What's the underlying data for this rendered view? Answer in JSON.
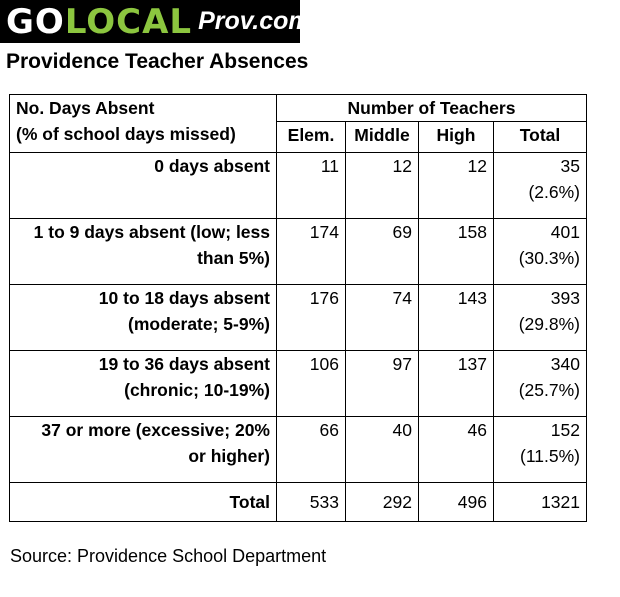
{
  "logo": {
    "part1": "GO",
    "part2": "LOCAL",
    "part3": "Prov.com"
  },
  "title": "Providence Teacher Absences",
  "table": {
    "label_header_line1": "No. Days Absent",
    "label_header_line2": "(% of school days missed)",
    "group_header": "Number of Teachers",
    "columns": [
      "Elem.",
      "Middle",
      "High",
      "Total"
    ],
    "rows": [
      {
        "label1": "0 days absent",
        "label2": "",
        "elem": "11",
        "middle": "12",
        "high": "12",
        "total": "35",
        "pct": "(2.6%)"
      },
      {
        "label1": "1 to 9 days absent (low; less",
        "label2": "than 5%)",
        "elem": "174",
        "middle": "69",
        "high": "158",
        "total": "401",
        "pct": "(30.3%)"
      },
      {
        "label1": "10 to 18 days absent",
        "label2": "(moderate; 5-9%)",
        "elem": "176",
        "middle": "74",
        "high": "143",
        "total": "393",
        "pct": "(29.8%)"
      },
      {
        "label1": "19 to 36 days absent",
        "label2": "(chronic; 10-19%)",
        "elem": "106",
        "middle": "97",
        "high": "137",
        "total": "340",
        "pct": "(25.7%)"
      },
      {
        "label1": "37 or more (excessive; 20%",
        "label2": "or higher)",
        "elem": "66",
        "middle": "40",
        "high": "46",
        "total": "152",
        "pct": "(11.5%)"
      }
    ],
    "total_row": {
      "label": "Total",
      "elem": "533",
      "middle": "292",
      "high": "496",
      "total": "1321"
    }
  },
  "source": "Source: Providence School Department"
}
